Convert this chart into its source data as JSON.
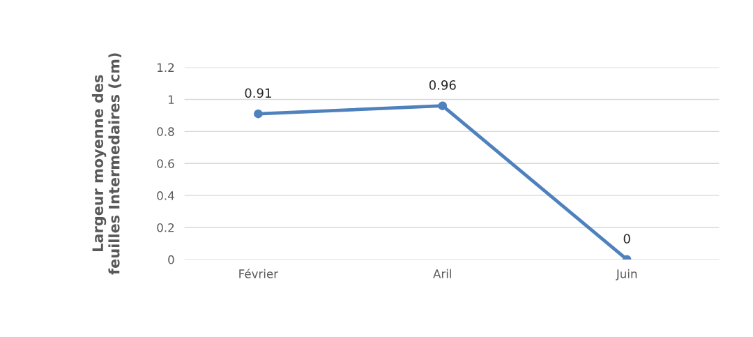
{
  "chart_data": {
    "type": "line",
    "ylabel": "Largeur moyenne des\nfeuilles Intermedaires (cm)",
    "categories": [
      "Février",
      "Aril",
      "Juin"
    ],
    "series": [
      {
        "color": "#4f81bd",
        "values": [
          0.91,
          0.96,
          0
        ]
      }
    ],
    "ylim": [
      0,
      1.2
    ],
    "yticks": [
      0,
      0.2,
      0.4,
      0.6,
      0.8,
      1,
      1.2
    ],
    "grid": "y",
    "marker": "circle",
    "line_style": "solid",
    "data_labels": true
  }
}
